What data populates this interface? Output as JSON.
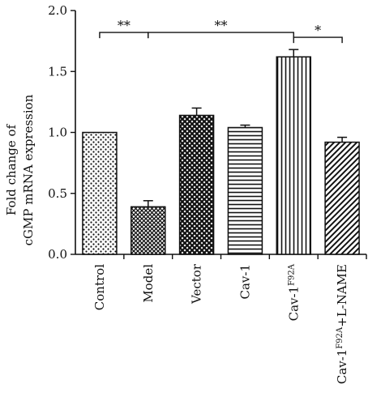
{
  "chart_data": {
    "type": "bar",
    "ylabel_line1": "Fold change of",
    "ylabel_line2": "cGMP mRNA expression",
    "ylim": [
      0,
      2.0
    ],
    "yticks": [
      "0.0",
      "0.5",
      "1.0",
      "1.5",
      "2.0"
    ],
    "categories": [
      {
        "label": "Control",
        "sup": "",
        "suffix": "",
        "value": 1.0,
        "error": 0,
        "pattern": "dots"
      },
      {
        "label": "Model",
        "sup": "",
        "suffix": "",
        "value": 0.39,
        "error": 0.05,
        "pattern": "crosshatch"
      },
      {
        "label": "Vector",
        "sup": "",
        "suffix": "",
        "value": 1.14,
        "error": 0.06,
        "pattern": "checker"
      },
      {
        "label": "Cav-1",
        "sup": "",
        "suffix": "",
        "value": 1.04,
        "error": 0.02,
        "pattern": "hlines"
      },
      {
        "label": "Cav-1",
        "sup": "F92A",
        "suffix": "",
        "value": 1.62,
        "error": 0.06,
        "pattern": "vlines"
      },
      {
        "label": "Cav-1",
        "sup": "F92A",
        "suffix": "+L-NAME",
        "value": 0.92,
        "error": 0.04,
        "pattern": "diagonal"
      }
    ],
    "significance": [
      {
        "from": 0,
        "to": 1,
        "label": "**",
        "level": 1.82
      },
      {
        "from": 1,
        "to": 4,
        "label": "**",
        "level": 1.82
      },
      {
        "from": 4,
        "to": 5,
        "label": "*",
        "level": 1.78
      }
    ],
    "grid": false
  }
}
